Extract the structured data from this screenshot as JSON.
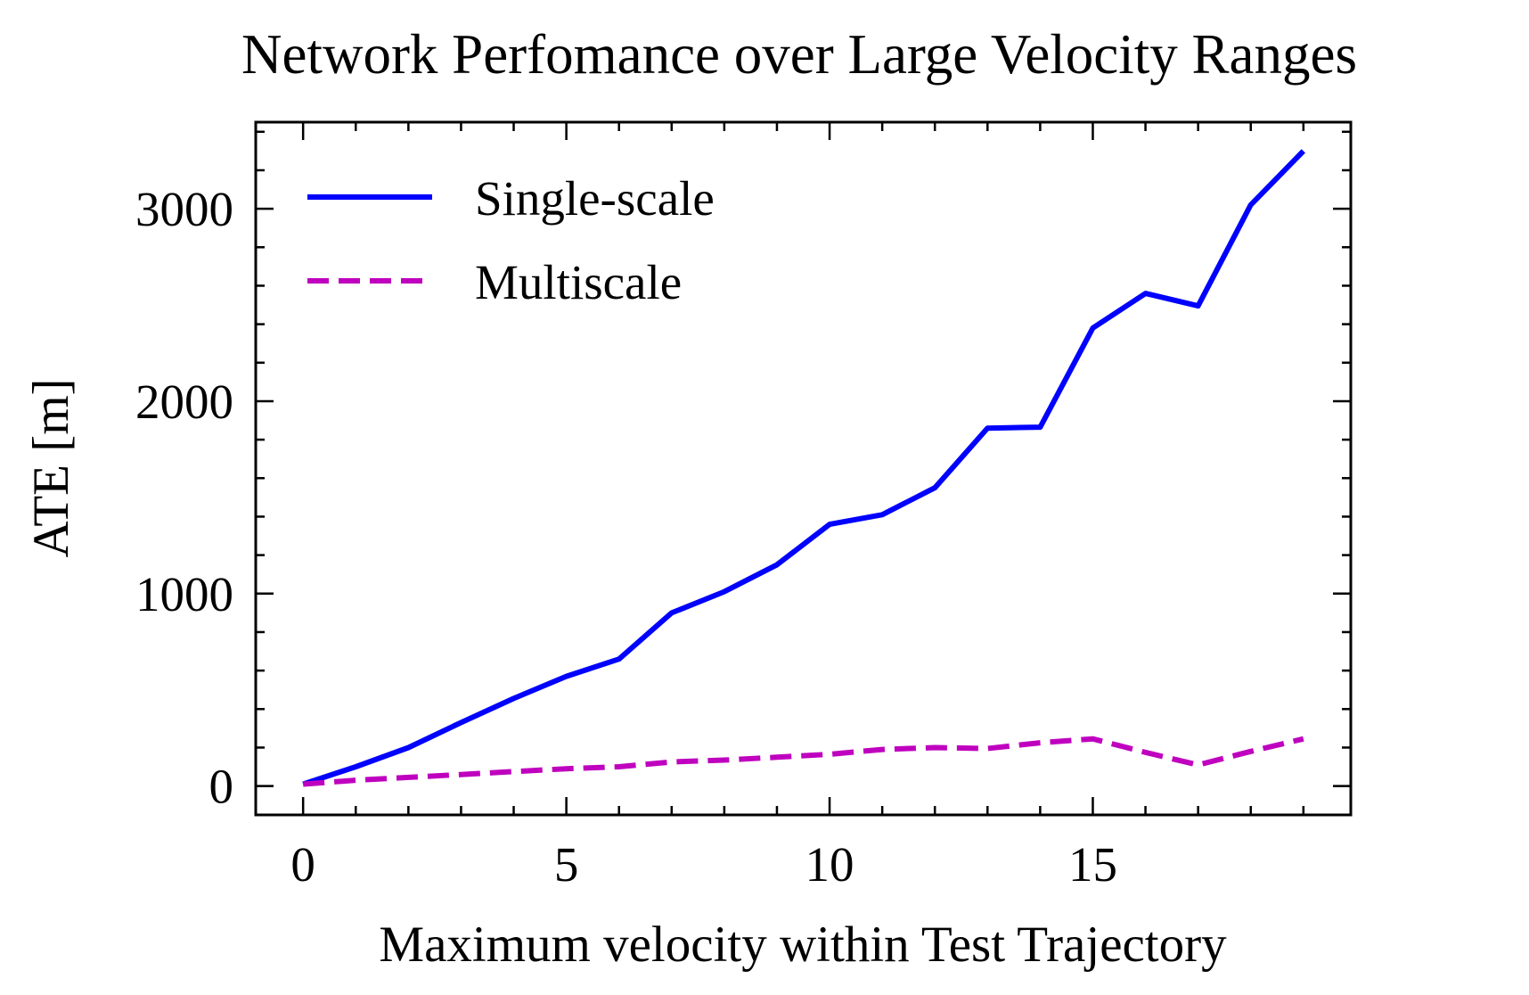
{
  "chart_data": {
    "type": "line",
    "title": "Network Perfomance over Large Velocity Ranges",
    "xlabel": "Maximum velocity within Test Trajectory",
    "ylabel": "ATE [m]",
    "xlim": [
      -0.9,
      19.9
    ],
    "ylim": [
      -150,
      3450
    ],
    "xticks": [
      0,
      5,
      10,
      15
    ],
    "yticks": [
      0,
      1000,
      2000,
      3000
    ],
    "x_minor_step": 1,
    "y_minor_step": 200,
    "grid": false,
    "legend_position": "upper-left",
    "x": [
      0,
      1,
      2,
      3,
      4,
      5,
      6,
      7,
      8,
      9,
      10,
      11,
      12,
      13,
      14,
      15,
      16,
      17,
      18,
      19
    ],
    "series": [
      {
        "name": "Single-scale",
        "color": "#0000ff",
        "style": "solid",
        "values": [
          10,
          100,
          200,
          330,
          455,
          570,
          660,
          900,
          1010,
          1150,
          1360,
          1410,
          1550,
          1860,
          1865,
          2380,
          2560,
          2495,
          3020,
          3300
        ]
      },
      {
        "name": "Multiscale",
        "color": "#bf00bf",
        "style": "dashed",
        "values": [
          10,
          30,
          45,
          60,
          75,
          90,
          100,
          125,
          135,
          150,
          165,
          190,
          200,
          195,
          225,
          245,
          175,
          110,
          180,
          245
        ]
      }
    ]
  }
}
